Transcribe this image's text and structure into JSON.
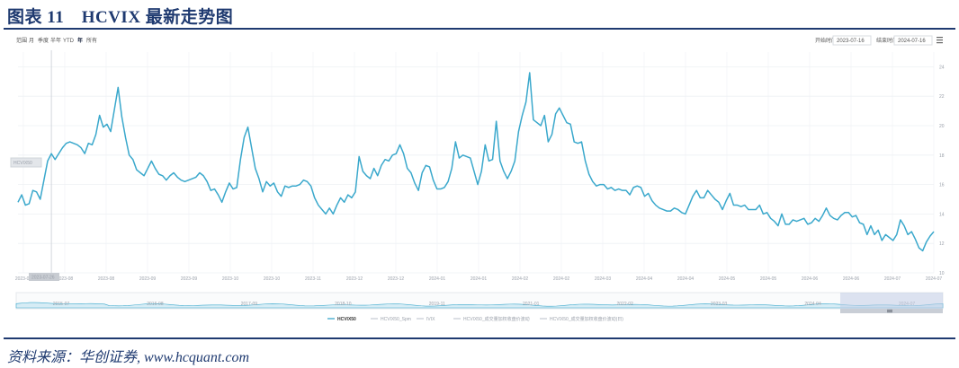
{
  "figure": {
    "title": "图表 11　HCVIX 最新走势图",
    "source": "资料来源：华创证券, www.hcquant.com"
  },
  "toolbar": {
    "range_label": "范围",
    "ranges": [
      "月",
      "季度",
      "半年",
      "YTD",
      "年",
      "所有"
    ],
    "active_range": "年",
    "start_label": "开始时间",
    "start_value": "2023-07-16",
    "end_label": "结束时间",
    "end_value": "2024-07-16",
    "menu_icon": "hamburger-menu-icon"
  },
  "tooltip": {
    "label": "HCVIX50",
    "value_text": "2023-07-26"
  },
  "legend": [
    "HCVIX50",
    "HCVIX50_Spm",
    "IVIX",
    "HCVIX50_成交量加权收盘价波动",
    "HCVIX50_成交量加权收盘价波动(日)"
  ],
  "colors": {
    "line": "#3aa8cc",
    "navigator_fill": "#d6ecf5",
    "navigator_selected": "#c3cde6",
    "title": "#1f3a70",
    "grid": "#eef1f4"
  },
  "chart_data": {
    "type": "line",
    "x_tick_labels": [
      "2023-07",
      "2023-08",
      "2023-08",
      "2023-09",
      "2023-09",
      "2023-10",
      "2023-10",
      "2023-11",
      "2023-12",
      "2023-12",
      "2024-01",
      "2024-01",
      "2024-02",
      "2024-02",
      "2024-03",
      "2024-04",
      "2024-04",
      "2024-05",
      "2024-05",
      "2024-06",
      "2024-06",
      "2024-07",
      "2024-07"
    ],
    "y_ticks": [
      10,
      12,
      14,
      16,
      18,
      20,
      22,
      24
    ],
    "ylim": [
      10,
      25
    ],
    "grid": true,
    "legend_position": "bottom",
    "navigator_labels": [
      "2015-07",
      "2016-08",
      "2017-09",
      "2018-10",
      "2019-11",
      "2021-01",
      "2022-02",
      "2023-03",
      "2024-04",
      "2024-07"
    ],
    "series": [
      {
        "name": "HCVIX50",
        "values": [
          14.8,
          15.3,
          14.6,
          14.7,
          15.6,
          15.5,
          15.0,
          16.3,
          17.6,
          18.1,
          17.7,
          18.1,
          18.5,
          18.8,
          18.9,
          18.8,
          18.7,
          18.5,
          18.1,
          18.8,
          18.7,
          19.4,
          20.7,
          19.9,
          20.1,
          19.6,
          21.1,
          22.6,
          20.6,
          19.2,
          18.0,
          17.7,
          17.0,
          16.8,
          16.6,
          17.1,
          17.6,
          17.1,
          16.7,
          16.6,
          16.3,
          16.6,
          16.8,
          16.5,
          16.3,
          16.2,
          16.3,
          16.4,
          16.5,
          16.8,
          16.6,
          16.2,
          15.6,
          15.7,
          15.3,
          14.8,
          15.5,
          16.1,
          15.7,
          15.8,
          17.7,
          19.2,
          19.9,
          18.5,
          17.1,
          16.4,
          15.5,
          16.2,
          15.9,
          16.1,
          15.5,
          15.2,
          15.9,
          15.8,
          15.9,
          15.9,
          16.0,
          16.3,
          16.2,
          15.9,
          15.1,
          14.6,
          14.3,
          14.0,
          14.4,
          14.0,
          14.6,
          15.1,
          14.8,
          15.3,
          15.1,
          15.5,
          17.9,
          16.9,
          16.6,
          16.4,
          17.1,
          16.6,
          17.3,
          17.7,
          17.6,
          18.0,
          18.1,
          18.7,
          18.1,
          17.1,
          16.8,
          16.1,
          15.6,
          16.8,
          17.3,
          17.2,
          16.3,
          15.7,
          15.7,
          15.8,
          16.2,
          17.1,
          18.9,
          17.8,
          18.0,
          17.9,
          17.8,
          16.9,
          16.0,
          16.9,
          18.7,
          17.6,
          17.7,
          20.3,
          17.6,
          16.9,
          16.4,
          16.9,
          17.6,
          19.6,
          20.7,
          21.6,
          23.6,
          20.4,
          20.2,
          20.0,
          20.7,
          18.9,
          19.4,
          20.8,
          21.2,
          20.7,
          20.2,
          20.1,
          18.9,
          18.8,
          18.9,
          17.6,
          16.7,
          16.2,
          15.9,
          16.0,
          16.0,
          15.7,
          15.8,
          15.6,
          15.7,
          15.6,
          15.6,
          15.3,
          15.8,
          15.9,
          15.8,
          15.2,
          15.4,
          14.9,
          14.6,
          14.4,
          14.3,
          14.2,
          14.2,
          14.4,
          14.3,
          14.1,
          14.0,
          14.6,
          15.2,
          15.6,
          15.1,
          15.1,
          15.6,
          15.3,
          15.0,
          14.8,
          14.3,
          14.9,
          15.4,
          14.6,
          14.6,
          14.5,
          14.6,
          14.3,
          14.3,
          14.3,
          14.6,
          14.0,
          14.1,
          13.7,
          13.5,
          13.2,
          14.0,
          13.3,
          13.3,
          13.6,
          13.5,
          13.6,
          13.7,
          13.3,
          13.4,
          13.7,
          13.5,
          13.9,
          14.4,
          13.9,
          13.7,
          13.6,
          13.9,
          14.1,
          14.1,
          13.8,
          13.9,
          13.4,
          13.3,
          12.6,
          13.2,
          12.6,
          12.9,
          12.2,
          12.6,
          12.4,
          12.2,
          12.6,
          13.6,
          13.2,
          12.6,
          12.8,
          12.3,
          11.7,
          11.5,
          12.1,
          12.5,
          12.8
        ]
      }
    ]
  }
}
